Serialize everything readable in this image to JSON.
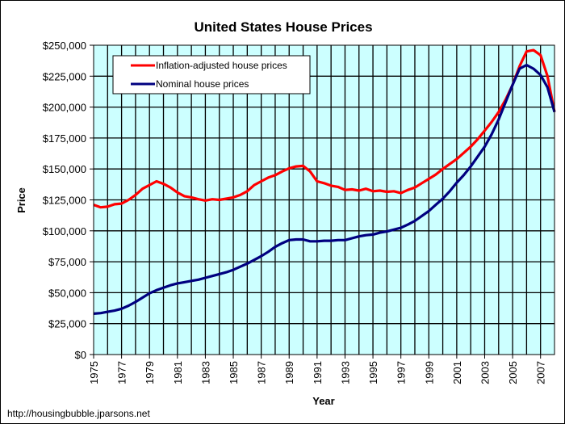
{
  "chart_data": {
    "type": "line",
    "title": "United States House Prices",
    "xlabel": "Year",
    "ylabel": "Price",
    "xlim": [
      1975,
      2008
    ],
    "ylim": [
      0,
      250000
    ],
    "y_ticks": [
      0,
      25000,
      50000,
      75000,
      100000,
      125000,
      150000,
      175000,
      200000,
      225000,
      250000
    ],
    "y_tick_labels": [
      "$0",
      "$25,000",
      "$50,000",
      "$75,000",
      "$100,000",
      "$125,000",
      "$150,000",
      "$175,000",
      "$200,000",
      "$225,000",
      "$250,000"
    ],
    "x_tick_labels": [
      "1975",
      "1977",
      "1979",
      "1981",
      "1983",
      "1985",
      "1987",
      "1989",
      "1991",
      "1993",
      "1995",
      "1997",
      "1999",
      "2001",
      "2003",
      "2005",
      "2007"
    ],
    "grid": true,
    "plot_background": "#ccffff",
    "legend_position": "top-left",
    "series": [
      {
        "name": "Inflation-adjusted house prices",
        "color": "#ff0000",
        "x": [
          1975,
          1975.5,
          1976,
          1976.5,
          1977,
          1977.5,
          1978,
          1978.5,
          1979,
          1979.5,
          1980,
          1980.5,
          1981,
          1981.5,
          1982,
          1982.5,
          1983,
          1983.5,
          1984,
          1984.5,
          1985,
          1985.5,
          1986,
          1986.5,
          1987,
          1987.5,
          1988,
          1988.5,
          1989,
          1989.5,
          1990,
          1990.5,
          1991,
          1991.5,
          1992,
          1992.5,
          1993,
          1993.5,
          1994,
          1994.5,
          1995,
          1995.5,
          1996,
          1996.5,
          1997,
          1997.5,
          1998,
          1998.5,
          1999,
          1999.5,
          2000,
          2000.5,
          2001,
          2001.5,
          2002,
          2002.5,
          2003,
          2003.5,
          2004,
          2004.5,
          2005,
          2005.5,
          2006,
          2006.5,
          2007,
          2007.5,
          2008
        ],
        "values": [
          121000,
          119000,
          119500,
          121500,
          122000,
          125000,
          129000,
          134000,
          137000,
          140000,
          138000,
          135000,
          131000,
          128000,
          127000,
          125500,
          124500,
          125500,
          125000,
          126000,
          127000,
          129000,
          132000,
          137000,
          140000,
          143000,
          145000,
          148000,
          150500,
          152000,
          152500,
          148000,
          140000,
          138500,
          136500,
          135500,
          133000,
          133500,
          132500,
          134000,
          132000,
          132500,
          131500,
          132000,
          130500,
          133000,
          135000,
          138500,
          142000,
          145500,
          150000,
          154000,
          158000,
          163000,
          168000,
          174000,
          181000,
          188000,
          196000,
          206000,
          218000,
          233000,
          245000,
          246000,
          242000,
          225000,
          196000
        ]
      },
      {
        "name": "Nominal house prices",
        "color": "#000080",
        "x": [
          1975,
          1975.5,
          1976,
          1976.5,
          1977,
          1977.5,
          1978,
          1978.5,
          1979,
          1979.5,
          1980,
          1980.5,
          1981,
          1981.5,
          1982,
          1982.5,
          1983,
          1983.5,
          1984,
          1984.5,
          1985,
          1985.5,
          1986,
          1986.5,
          1987,
          1987.5,
          1988,
          1988.5,
          1989,
          1989.5,
          1990,
          1990.5,
          1991,
          1991.5,
          1992,
          1992.5,
          1993,
          1993.5,
          1994,
          1994.5,
          1995,
          1995.5,
          1996,
          1996.5,
          1997,
          1997.5,
          1998,
          1998.5,
          1999,
          1999.5,
          2000,
          2000.5,
          2001,
          2001.5,
          2002,
          2002.5,
          2003,
          2003.5,
          2004,
          2004.5,
          2005,
          2005.5,
          2006,
          2006.5,
          2007,
          2007.5,
          2008
        ],
        "values": [
          33000,
          33500,
          34500,
          35500,
          37000,
          39500,
          42500,
          46000,
          49500,
          52000,
          54000,
          56000,
          57500,
          58500,
          59500,
          60500,
          62000,
          63500,
          65000,
          66500,
          68500,
          71000,
          73500,
          76500,
          79500,
          83000,
          87000,
          90000,
          92500,
          93000,
          93000,
          91500,
          91500,
          92000,
          92000,
          92500,
          92500,
          94000,
          95500,
          96500,
          97000,
          98500,
          99500,
          101000,
          102500,
          105000,
          108000,
          112000,
          116000,
          121000,
          126000,
          132000,
          139000,
          145000,
          152000,
          160000,
          168000,
          178000,
          190000,
          204000,
          218000,
          231000,
          234000,
          231000,
          226000,
          216000,
          196000
        ]
      }
    ]
  },
  "footer": {
    "source": "http://housingbubble.jparsons.net"
  }
}
